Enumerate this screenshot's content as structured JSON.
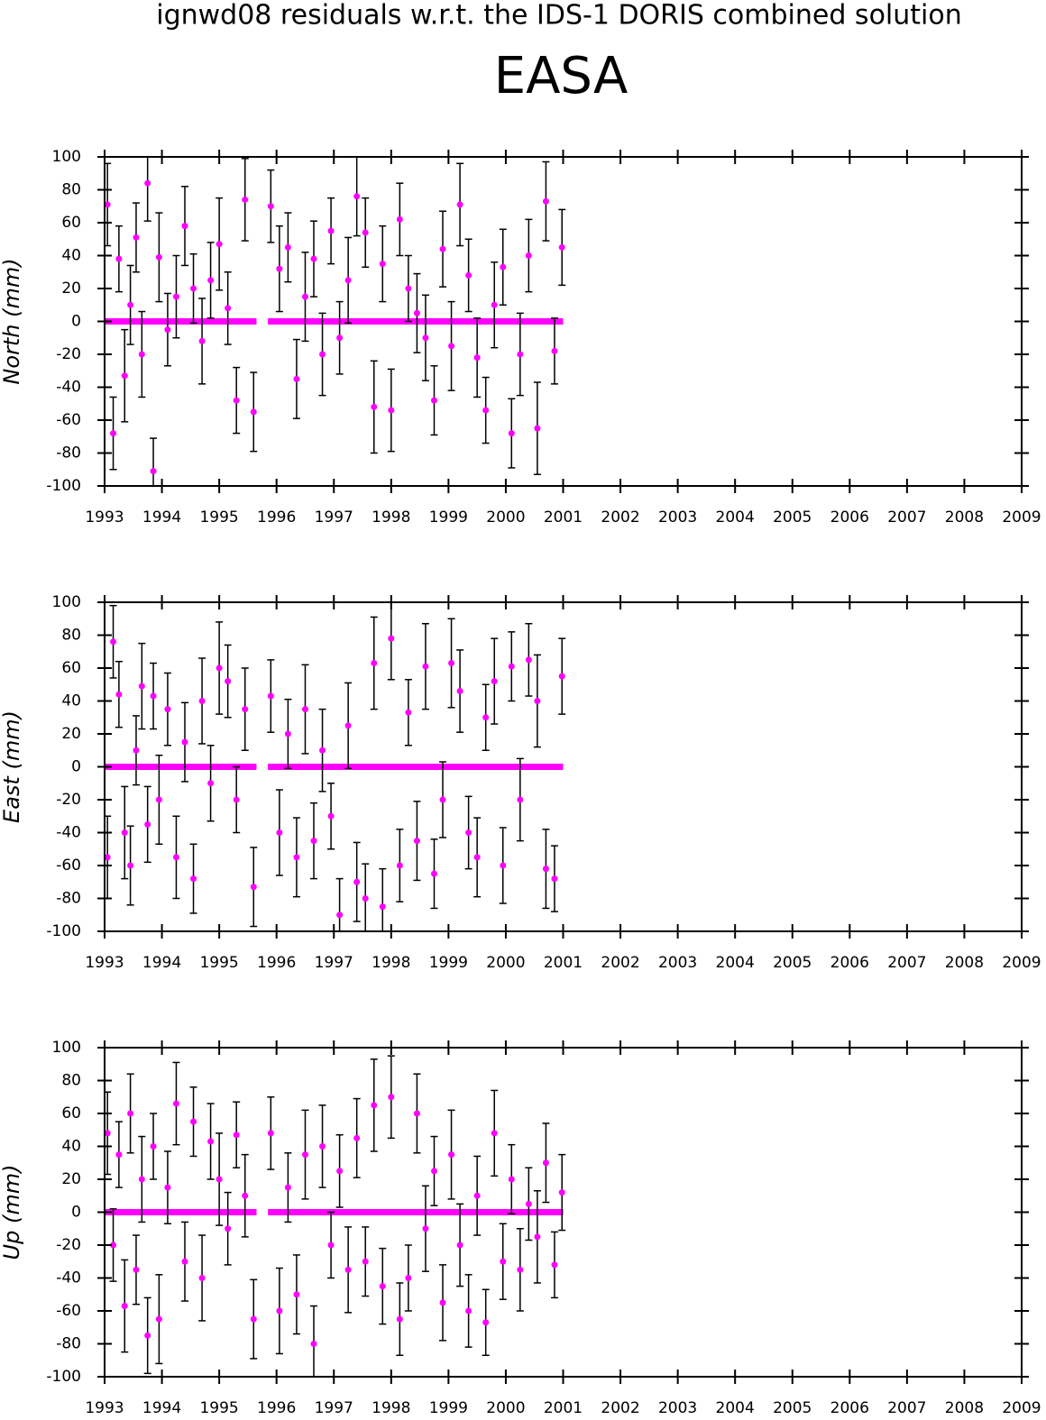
{
  "title": "ignwd08 residuals w.r.t. the IDS-1 DORIS combined solution",
  "station": "EASA",
  "chart_data": [
    {
      "type": "errorbar",
      "ylabel": "North (mm)",
      "xlim": [
        1993,
        2009
      ],
      "xticks": [
        1993,
        1994,
        1995,
        1996,
        1997,
        1998,
        1999,
        2000,
        2001,
        2002,
        2003,
        2004,
        2005,
        2006,
        2007,
        2008,
        2009
      ],
      "ylim": [
        -100,
        100
      ],
      "yticks": [
        -100,
        -80,
        -60,
        -40,
        -20,
        0,
        20,
        40,
        60,
        80,
        100
      ],
      "x": [
        1993.05,
        1993.15,
        1993.25,
        1993.35,
        1993.45,
        1993.55,
        1993.65,
        1993.75,
        1993.85,
        1993.95,
        1994.1,
        1994.25,
        1994.4,
        1994.55,
        1994.7,
        1994.85,
        1995.0,
        1995.15,
        1995.3,
        1995.45,
        1995.6,
        1995.9,
        1996.05,
        1996.2,
        1996.35,
        1996.5,
        1996.65,
        1996.8,
        1996.95,
        1997.1,
        1997.25,
        1997.4,
        1997.55,
        1997.7,
        1997.85,
        1998.0,
        1998.15,
        1998.3,
        1998.45,
        1998.6,
        1998.75,
        1998.9,
        1999.05,
        1999.2,
        1999.35,
        1999.5,
        1999.65,
        1999.8,
        1999.95,
        2000.1,
        2000.25,
        2000.4,
        2000.55,
        2000.7,
        2000.85,
        2000.98
      ],
      "series": [
        {
          "color": "#ff00ff",
          "values": [
            71,
            -68,
            38,
            -33,
            10,
            51,
            -20,
            84,
            -91,
            39,
            -5,
            15,
            58,
            20,
            -12,
            25,
            47,
            8,
            -48,
            74,
            -55,
            70,
            32,
            45,
            -35,
            15,
            38,
            -20,
            55,
            -10,
            25,
            76,
            54,
            -52,
            35,
            -54,
            62,
            20,
            5,
            -10,
            -48,
            44,
            -15,
            71,
            28,
            -22,
            -54,
            10,
            33,
            -68,
            -20,
            40,
            -65,
            73,
            -18,
            45
          ],
          "errors": [
            25,
            22,
            20,
            28,
            24,
            21,
            26,
            23,
            20,
            27,
            22,
            25,
            24,
            21,
            26,
            23,
            28,
            22,
            20,
            25,
            24,
            22,
            26,
            21,
            24,
            27,
            23,
            25,
            20,
            22,
            26,
            24,
            21,
            28,
            23,
            25,
            22,
            20,
            24,
            26,
            21,
            23,
            27,
            25,
            22,
            24,
            20,
            26,
            23,
            21,
            25,
            22,
            28,
            24,
            20,
            23
          ]
        }
      ],
      "reference": {
        "color": "#ff00ff",
        "x": [
          1993.0,
          1995.65,
          1995.75,
          1995.85,
          2001.0
        ],
        "values": [
          0,
          0,
          null,
          0,
          0
        ]
      }
    },
    {
      "type": "errorbar",
      "ylabel": "East (mm)",
      "xlim": [
        1993,
        2009
      ],
      "xticks": [
        1993,
        1994,
        1995,
        1996,
        1997,
        1998,
        1999,
        2000,
        2001,
        2002,
        2003,
        2004,
        2005,
        2006,
        2007,
        2008,
        2009
      ],
      "ylim": [
        -100,
        100
      ],
      "yticks": [
        -100,
        -80,
        -60,
        -40,
        -20,
        0,
        20,
        40,
        60,
        80,
        100
      ],
      "x": [
        1993.05,
        1993.15,
        1993.25,
        1993.35,
        1993.45,
        1993.55,
        1993.65,
        1993.75,
        1993.85,
        1993.95,
        1994.1,
        1994.25,
        1994.4,
        1994.55,
        1994.7,
        1994.85,
        1995.0,
        1995.15,
        1995.3,
        1995.45,
        1995.6,
        1995.9,
        1996.05,
        1996.2,
        1996.35,
        1996.5,
        1996.65,
        1996.8,
        1996.95,
        1997.1,
        1997.25,
        1997.4,
        1997.55,
        1997.7,
        1997.85,
        1998.0,
        1998.15,
        1998.3,
        1998.45,
        1998.6,
        1998.75,
        1998.9,
        1999.05,
        1999.2,
        1999.35,
        1999.5,
        1999.65,
        1999.8,
        1999.95,
        2000.1,
        2000.25,
        2000.4,
        2000.55,
        2000.7,
        2000.85,
        2000.98
      ],
      "series": [
        {
          "color": "#ff00ff",
          "values": [
            -55,
            76,
            44,
            -40,
            -60,
            10,
            49,
            -35,
            43,
            -20,
            35,
            -55,
            15,
            -68,
            40,
            -10,
            60,
            52,
            -20,
            35,
            -73,
            43,
            -40,
            20,
            -55,
            35,
            -45,
            10,
            -30,
            -90,
            25,
            -70,
            -80,
            63,
            -85,
            78,
            -60,
            33,
            -45,
            61,
            -65,
            -20,
            63,
            46,
            -40,
            -55,
            30,
            52,
            -60,
            61,
            -20,
            65,
            40,
            -62,
            -68,
            55
          ],
          "errors": [
            25,
            22,
            20,
            28,
            24,
            21,
            26,
            23,
            20,
            27,
            22,
            25,
            24,
            21,
            26,
            23,
            28,
            22,
            20,
            25,
            24,
            22,
            26,
            21,
            24,
            27,
            23,
            25,
            20,
            22,
            26,
            24,
            21,
            28,
            23,
            25,
            22,
            20,
            24,
            26,
            21,
            23,
            27,
            25,
            22,
            24,
            20,
            26,
            23,
            21,
            25,
            22,
            28,
            24,
            20,
            23
          ]
        }
      ],
      "reference": {
        "color": "#ff00ff",
        "x": [
          1993.0,
          1995.65,
          1995.75,
          1995.85,
          2001.0
        ],
        "values": [
          0,
          0,
          null,
          0,
          0
        ]
      }
    },
    {
      "type": "errorbar",
      "ylabel": "Up (mm)",
      "xlim": [
        1993,
        2009
      ],
      "xticks": [
        1993,
        1994,
        1995,
        1996,
        1997,
        1998,
        1999,
        2000,
        2001,
        2002,
        2003,
        2004,
        2005,
        2006,
        2007,
        2008,
        2009
      ],
      "ylim": [
        -100,
        100
      ],
      "yticks": [
        -100,
        -80,
        -60,
        -40,
        -20,
        0,
        20,
        40,
        60,
        80,
        100
      ],
      "x": [
        1993.05,
        1993.15,
        1993.25,
        1993.35,
        1993.45,
        1993.55,
        1993.65,
        1993.75,
        1993.85,
        1993.95,
        1994.1,
        1994.25,
        1994.4,
        1994.55,
        1994.7,
        1994.85,
        1995.0,
        1995.15,
        1995.3,
        1995.45,
        1995.6,
        1995.9,
        1996.05,
        1996.2,
        1996.35,
        1996.5,
        1996.65,
        1996.8,
        1996.95,
        1997.1,
        1997.25,
        1997.4,
        1997.55,
        1997.7,
        1997.85,
        1998.0,
        1998.15,
        1998.3,
        1998.45,
        1998.6,
        1998.75,
        1998.9,
        1999.05,
        1999.2,
        1999.35,
        1999.5,
        1999.65,
        1999.8,
        1999.95,
        2000.1,
        2000.25,
        2000.4,
        2000.55,
        2000.7,
        2000.85,
        2000.98
      ],
      "series": [
        {
          "color": "#ff00ff",
          "values": [
            48,
            -20,
            35,
            -57,
            60,
            -35,
            20,
            -75,
            40,
            -65,
            15,
            66,
            -30,
            55,
            -40,
            43,
            20,
            -10,
            47,
            10,
            -65,
            48,
            -60,
            15,
            -50,
            35,
            -80,
            40,
            -20,
            25,
            -35,
            45,
            -30,
            65,
            -45,
            70,
            -65,
            -40,
            60,
            -10,
            25,
            -55,
            35,
            -20,
            -60,
            10,
            -67,
            48,
            -30,
            20,
            -35,
            5,
            -15,
            30,
            -32,
            12
          ],
          "errors": [
            25,
            22,
            20,
            28,
            24,
            21,
            26,
            23,
            20,
            27,
            22,
            25,
            24,
            21,
            26,
            23,
            28,
            22,
            20,
            25,
            24,
            22,
            26,
            21,
            24,
            27,
            23,
            25,
            20,
            22,
            26,
            24,
            21,
            28,
            23,
            25,
            22,
            20,
            24,
            26,
            21,
            23,
            27,
            25,
            22,
            24,
            20,
            26,
            23,
            21,
            25,
            22,
            28,
            24,
            20,
            23
          ]
        }
      ],
      "reference": {
        "color": "#ff00ff",
        "x": [
          1993.0,
          1995.65,
          1995.75,
          1995.85,
          2001.0
        ],
        "values": [
          0,
          0,
          null,
          0,
          0
        ]
      }
    }
  ]
}
